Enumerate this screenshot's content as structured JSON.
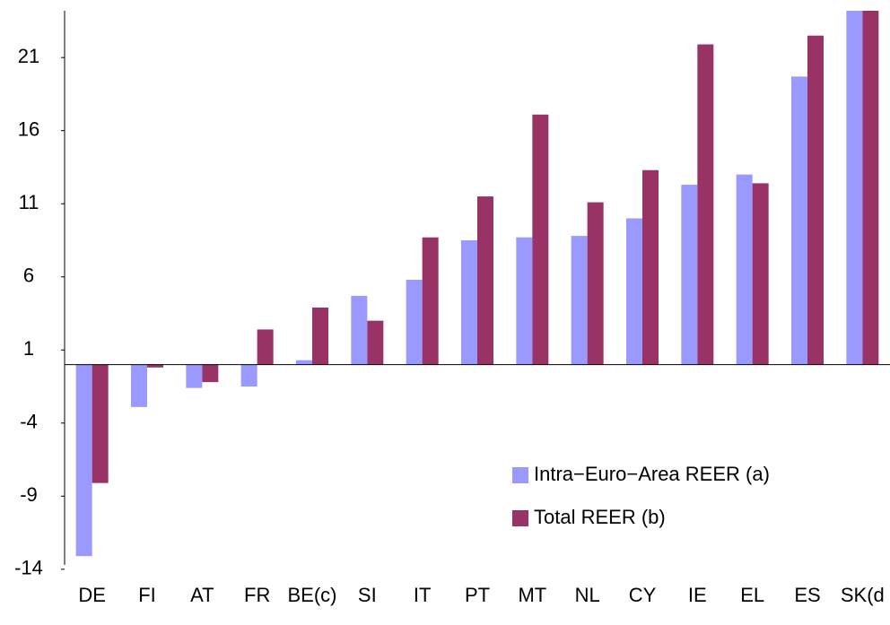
{
  "chart_data": {
    "type": "bar",
    "categories": [
      "DE",
      "FI",
      "AT",
      "FR",
      "BE(c)",
      "SI",
      "IT",
      "PT",
      "MT",
      "NL",
      "CY",
      "IE",
      "EL",
      "ES",
      "SK(d"
    ],
    "series": [
      {
        "name": "Intra−Euro−Area REER (a)",
        "color": "#9999ff",
        "values": [
          -13.1,
          -2.9,
          -1.6,
          -1.5,
          0.3,
          4.7,
          5.8,
          8.5,
          8.7,
          8.8,
          10.0,
          12.3,
          13.0,
          19.7,
          24.2
        ]
      },
      {
        "name": "Total REER (b)",
        "color": "#993366",
        "values": [
          -8.1,
          -0.2,
          -1.2,
          2.4,
          3.9,
          3.0,
          8.7,
          11.5,
          17.1,
          11.1,
          13.3,
          21.9,
          12.4,
          22.5,
          24.2
        ]
      }
    ],
    "ylim": [
      -14.5,
      24.2
    ],
    "yticks": [
      -14,
      -9,
      -4,
      1,
      6,
      11,
      16,
      21
    ],
    "legend": "lower right"
  }
}
